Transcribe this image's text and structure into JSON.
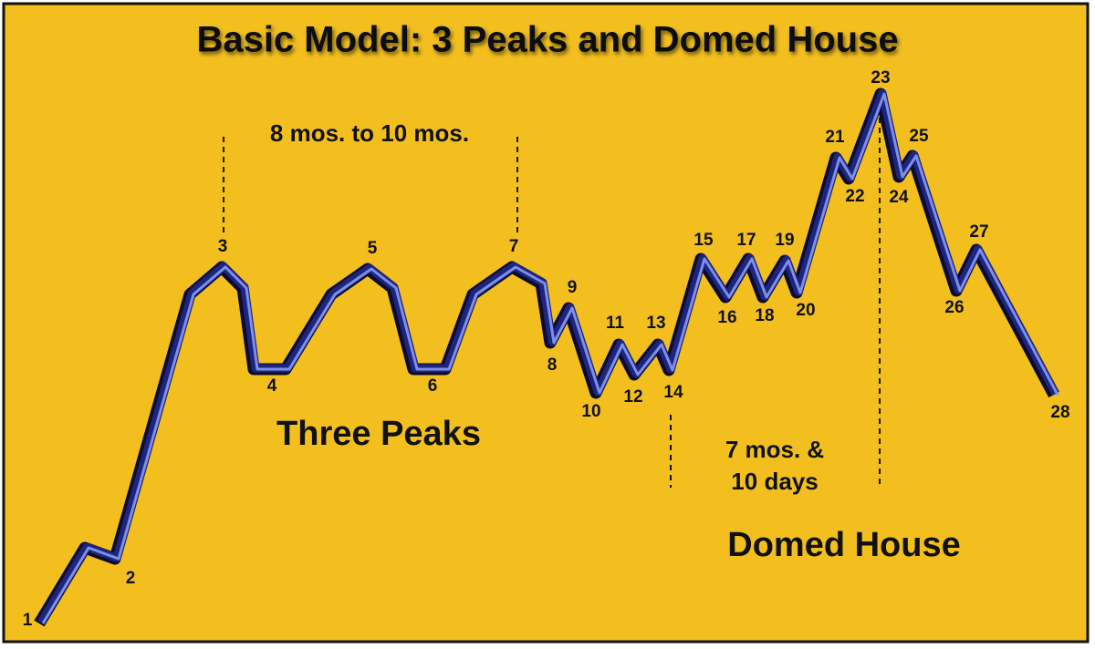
{
  "title": "Basic Model: 3 Peaks and Domed House",
  "nodes": [
    "1",
    "2",
    "3",
    "4",
    "5",
    "6",
    "7",
    "8",
    "9",
    "10",
    "11",
    "12",
    "13",
    "14",
    "15",
    "16",
    "17",
    "18",
    "19",
    "20",
    "21",
    "22",
    "23",
    "24",
    "25",
    "26",
    "27",
    "28"
  ],
  "annotations": {
    "peaks_span": "8 mos. to 10 mos.",
    "three_peaks": "Three Peaks",
    "dome_span_line1": "7 mos. &",
    "dome_span_line2": "10 days",
    "domed_house": "Domed House"
  }
}
